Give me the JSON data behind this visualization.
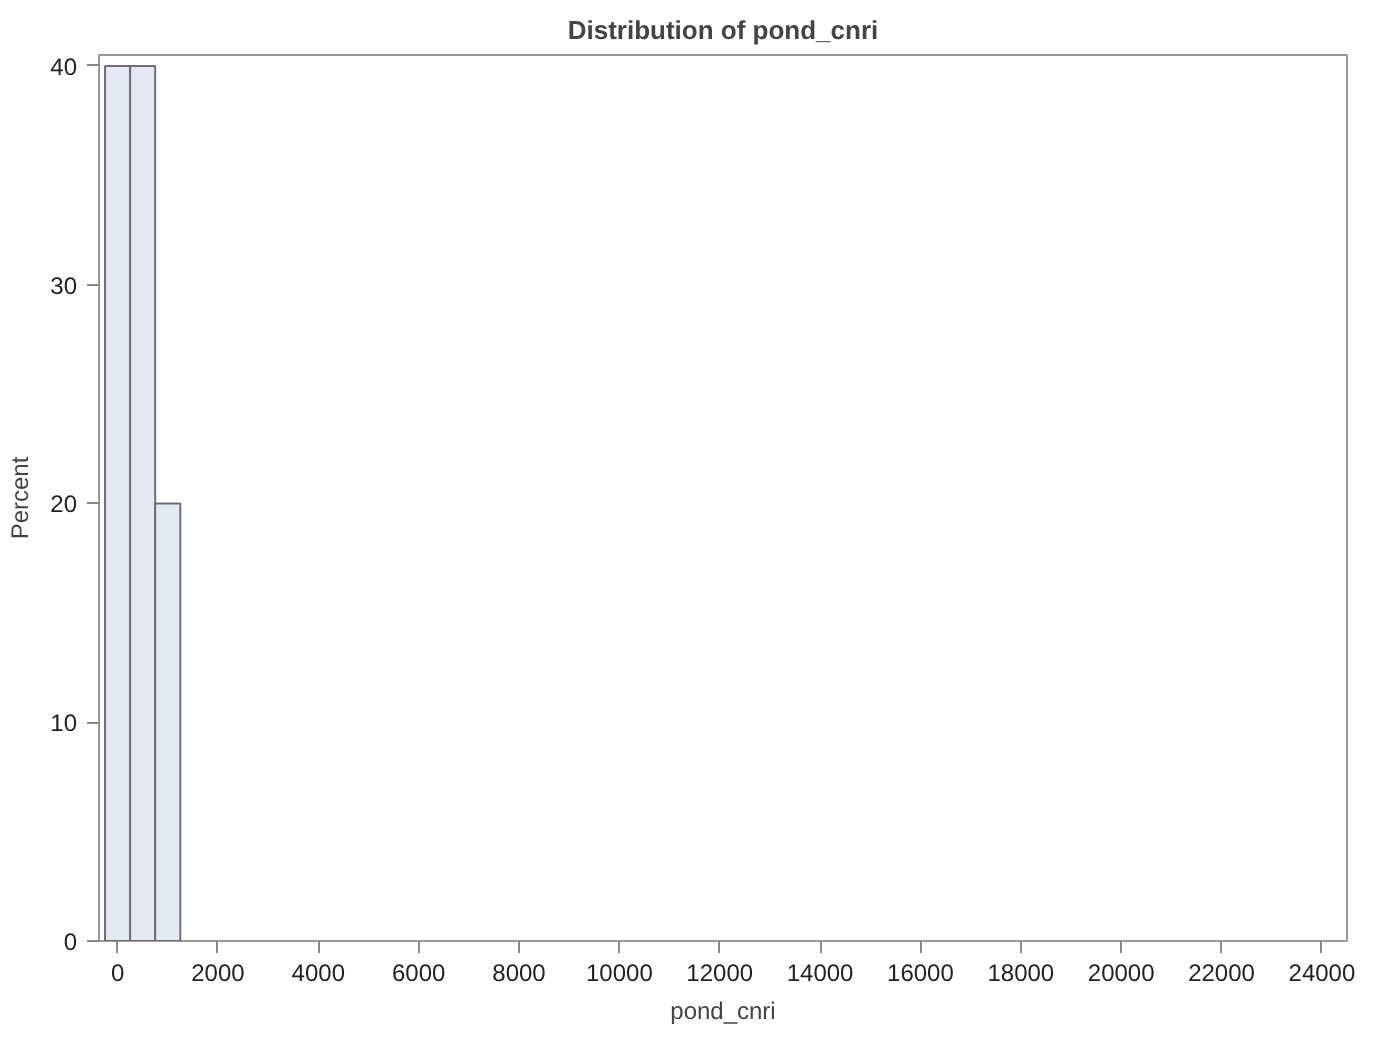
{
  "chart_data": {
    "type": "histogram",
    "title": "Distribution of pond_cnri",
    "xlabel": "pond_cnri",
    "ylabel": "Percent",
    "bins": [
      -250,
      250,
      750,
      1250
    ],
    "values": [
      40,
      40,
      20
    ],
    "color": "#e4e8f2",
    "xlim": [
      -370,
      24500
    ],
    "xticks": [
      0,
      2000,
      4000,
      6000,
      8000,
      10000,
      12000,
      14000,
      16000,
      18000,
      20000,
      22000,
      24000
    ],
    "ylim": [
      0,
      40.5
    ],
    "yticks": [
      0,
      10,
      20,
      30,
      40
    ],
    "grid": false
  }
}
